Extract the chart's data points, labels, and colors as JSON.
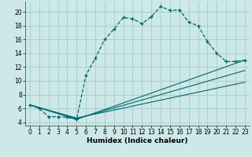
{
  "xlabel": "Humidex (Indice chaleur)",
  "background_color": "#cce8e8",
  "grid_color": "#aacfcf",
  "line_color": "#006868",
  "xlim": [
    -0.5,
    23.5
  ],
  "ylim": [
    3.5,
    21.5
  ],
  "xticks": [
    0,
    1,
    2,
    3,
    4,
    5,
    6,
    7,
    8,
    9,
    10,
    11,
    12,
    13,
    14,
    15,
    16,
    17,
    18,
    19,
    20,
    21,
    22,
    23
  ],
  "yticks": [
    4,
    6,
    8,
    10,
    12,
    14,
    16,
    18,
    20
  ],
  "main_x": [
    0,
    1,
    2,
    3,
    4,
    5,
    6,
    7,
    8,
    9,
    10,
    11,
    12,
    13,
    14,
    15,
    16,
    17,
    18,
    19,
    20,
    21,
    22,
    23
  ],
  "main_y": [
    6.5,
    6.0,
    4.8,
    4.8,
    4.7,
    4.4,
    10.8,
    13.3,
    16.0,
    17.5,
    19.2,
    19.0,
    18.3,
    19.3,
    20.8,
    20.2,
    20.3,
    18.5,
    18.0,
    15.7,
    14.0,
    12.8,
    12.8,
    13.0
  ],
  "fan_lines": [
    {
      "x": [
        0,
        5,
        23
      ],
      "y": [
        6.5,
        4.4,
        13.0
      ]
    },
    {
      "x": [
        0,
        5,
        23
      ],
      "y": [
        6.5,
        4.5,
        11.5
      ]
    },
    {
      "x": [
        0,
        5,
        23
      ],
      "y": [
        6.5,
        4.6,
        9.8
      ]
    }
  ]
}
